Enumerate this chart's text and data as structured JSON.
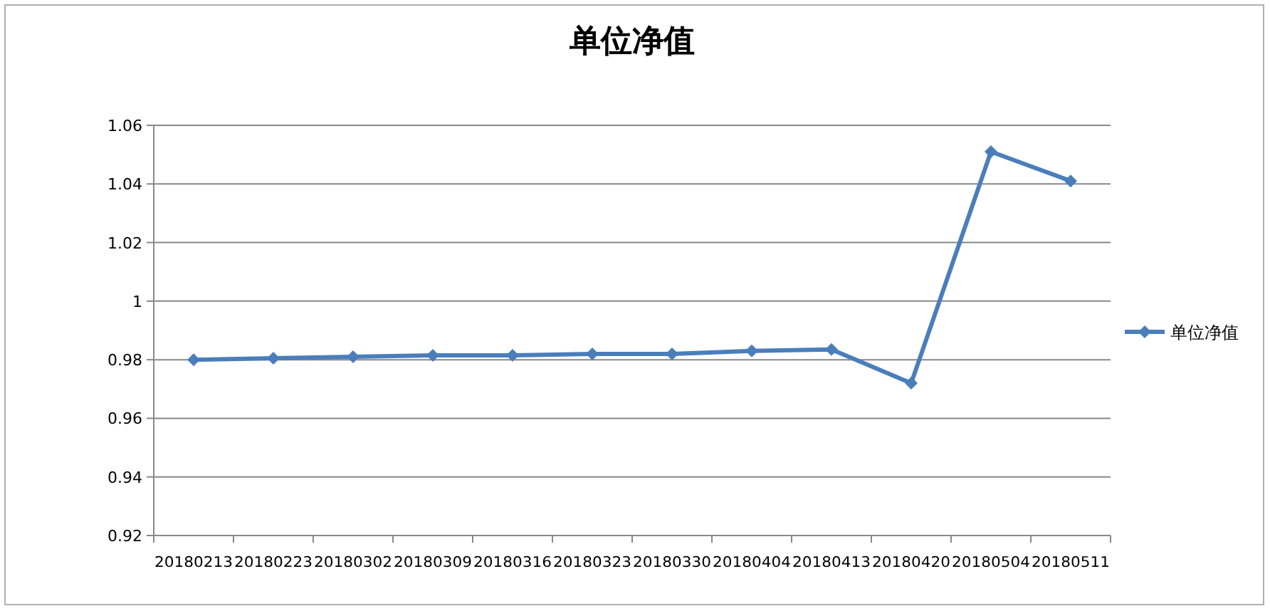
{
  "chart_data": {
    "type": "line",
    "title": "单位净值",
    "categories": [
      "20180213",
      "20180223",
      "20180302",
      "20180309",
      "20180316",
      "20180323",
      "20180330",
      "20180404",
      "20180413",
      "20180420",
      "20180504",
      "20180511"
    ],
    "series": [
      {
        "name": "单位净值",
        "color": "#4a7ebb",
        "values": [
          0.98,
          0.9805,
          0.981,
          0.9815,
          0.9815,
          0.982,
          0.982,
          0.983,
          0.9835,
          0.972,
          1.051,
          1.041
        ]
      }
    ],
    "ylim": [
      0.92,
      1.06
    ],
    "yticks": [
      0.92,
      0.94,
      0.96,
      0.98,
      1,
      1.02,
      1.04,
      1.06
    ],
    "grid": "y",
    "legend": "right",
    "marker": "diamond",
    "line_style": "solid"
  }
}
